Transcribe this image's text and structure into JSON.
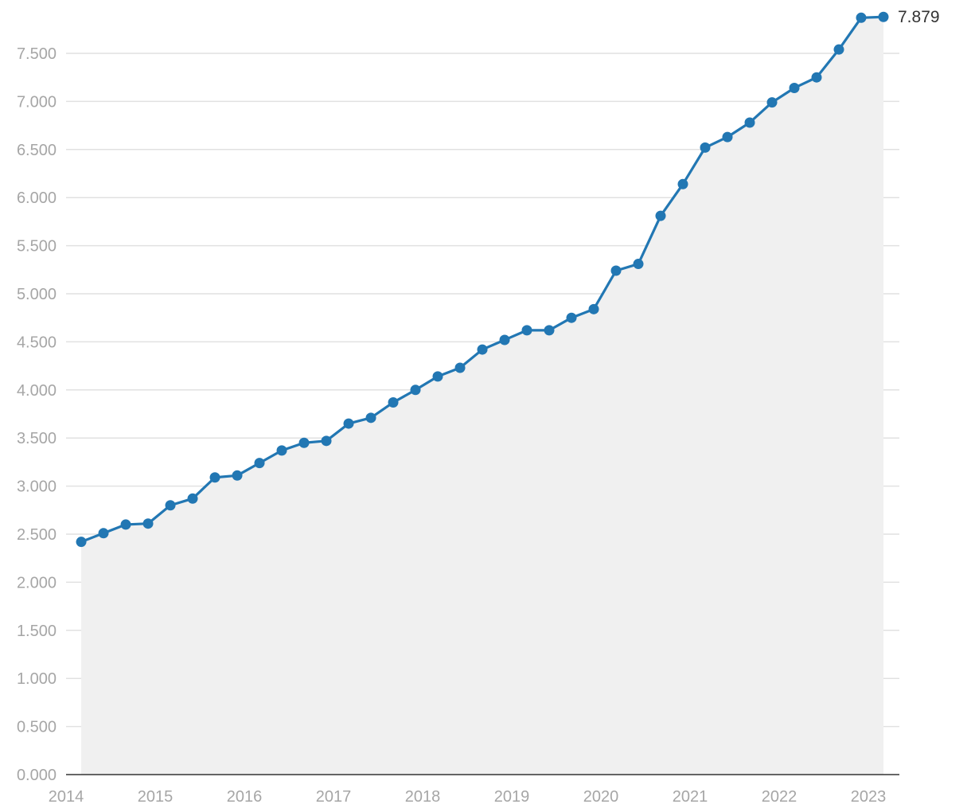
{
  "chart_data": {
    "type": "area",
    "title": "",
    "xlabel": "",
    "ylabel": "",
    "x_ticks": [
      "2014",
      "2015",
      "2016",
      "2017",
      "2018",
      "2019",
      "2020",
      "2021",
      "2022",
      "2023"
    ],
    "y_ticks": [
      "0.000",
      "0.500",
      "1.000",
      "1.500",
      "2.000",
      "2.500",
      "3.000",
      "3.500",
      "4.000",
      "4.500",
      "5.000",
      "5.500",
      "6.000",
      "6.500",
      "7.000",
      "7.500"
    ],
    "xlim": [
      2014.0,
      2023.25
    ],
    "ylim": [
      0,
      7.9
    ],
    "grid": true,
    "legend": "none",
    "colors": {
      "line": "#2277b3",
      "area": "#f0f0f0",
      "grid": "#e1e1e1",
      "tick_label": "#a6a6a6",
      "axis": "#333333",
      "end_label": "#333333"
    },
    "series": [
      {
        "x": [
          2014.17,
          2014.42,
          2014.67,
          2014.92,
          2015.17,
          2015.42,
          2015.67,
          2015.92,
          2016.17,
          2016.42,
          2016.67,
          2016.92,
          2017.17,
          2017.42,
          2017.67,
          2017.92,
          2018.17,
          2018.42,
          2018.67,
          2018.92,
          2019.17,
          2019.42,
          2019.67,
          2019.92,
          2020.17,
          2020.42,
          2020.67,
          2020.92,
          2021.17,
          2021.42,
          2021.67,
          2021.92,
          2022.17,
          2022.42,
          2022.67,
          2022.92,
          2023.17
        ],
        "y": [
          2.42,
          2.51,
          2.6,
          2.61,
          2.8,
          2.87,
          3.09,
          3.11,
          3.24,
          3.37,
          3.45,
          3.47,
          3.65,
          3.71,
          3.87,
          4.0,
          4.14,
          4.23,
          4.42,
          4.52,
          4.62,
          4.62,
          4.75,
          4.84,
          5.24,
          5.31,
          5.81,
          6.14,
          6.52,
          6.63,
          6.78,
          6.99,
          7.14,
          7.25,
          7.54,
          7.87,
          7.879
        ]
      }
    ],
    "end_label": "7.879"
  }
}
